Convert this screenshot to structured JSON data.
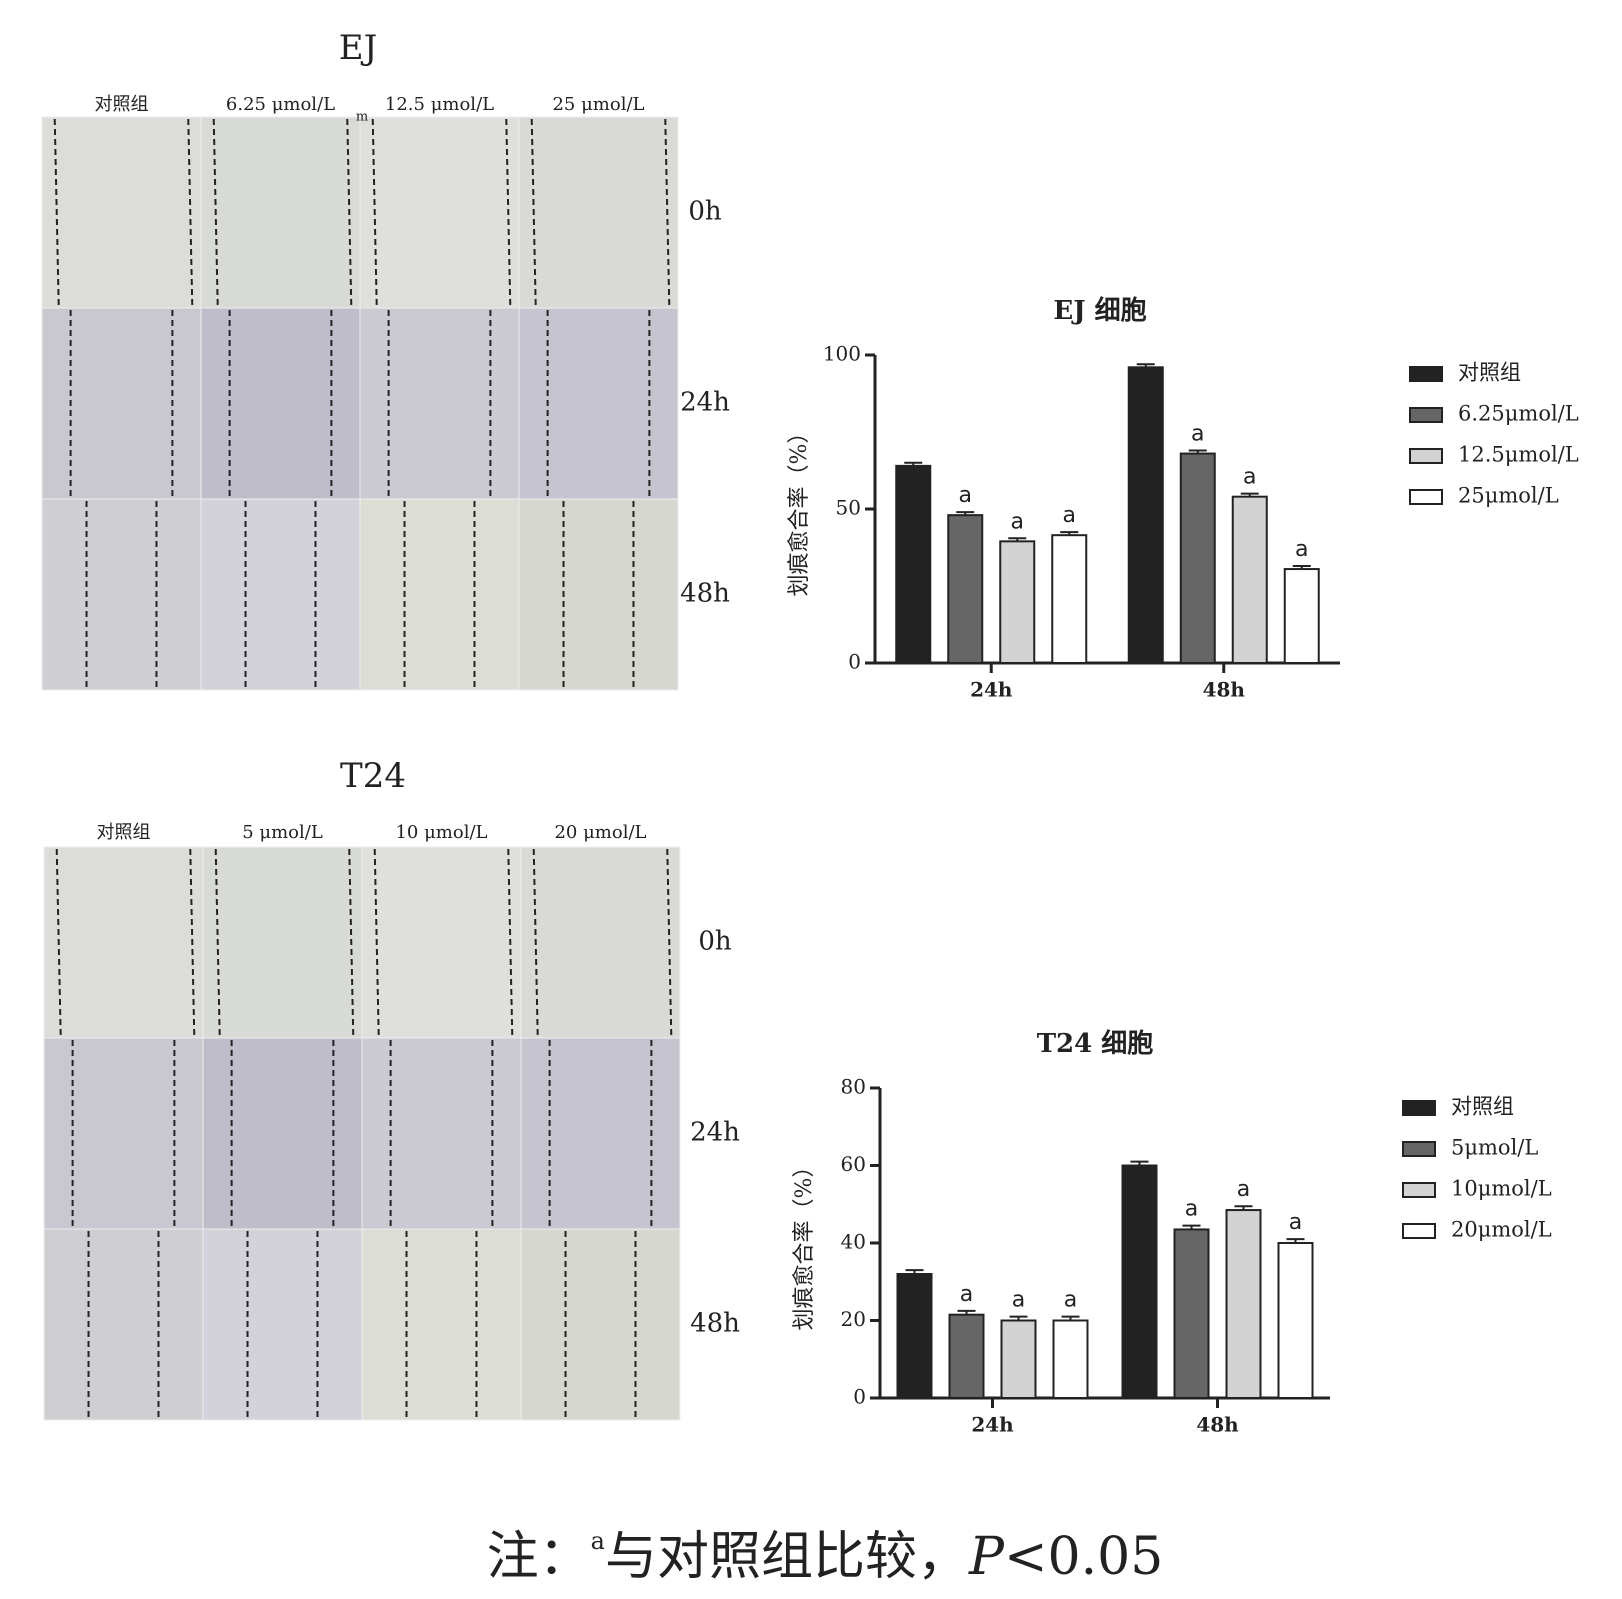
{
  "panels": [
    {
      "title": "EJ",
      "columns": [
        "对照组",
        "6.25 μmol/L",
        "12.5 μmol/L",
        "25 μmol/L"
      ],
      "rows": [
        "0h",
        "24h",
        "48h"
      ],
      "artifact": "m"
    },
    {
      "title": "T24",
      "columns": [
        "对照组",
        "5 μmol/L",
        "10 μmol/L",
        "20 μmol/L"
      ],
      "rows": [
        "0h",
        "24h",
        "48h"
      ]
    }
  ],
  "chart_data": [
    {
      "type": "bar",
      "title": "EJ 细胞",
      "y_label": "划痕愈合率（%）",
      "categories": [
        "24h",
        "48h"
      ],
      "ylim": [
        0,
        100
      ],
      "yticks": [
        0,
        50,
        100
      ],
      "legend": "right",
      "series": [
        {
          "name": "对照组",
          "color": "#222222",
          "values": [
            64,
            96
          ],
          "errors": [
            1,
            1
          ],
          "significance": [
            null,
            null
          ]
        },
        {
          "name": "6.25μmol/L",
          "color": "#666666",
          "values": [
            48,
            68
          ],
          "errors": [
            1,
            1
          ],
          "significance": [
            "a",
            "a"
          ]
        },
        {
          "name": "12.5μmol/L",
          "color": "#d3d3d3",
          "values": [
            39.5,
            54
          ],
          "errors": [
            1,
            1
          ],
          "significance": [
            "a",
            "a"
          ]
        },
        {
          "name": "25μmol/L",
          "color": "#ffffff",
          "values": [
            41.5,
            30.5
          ],
          "errors": [
            1,
            1
          ],
          "significance": [
            "a",
            "a"
          ]
        }
      ]
    },
    {
      "type": "bar",
      "title": "T24 细胞",
      "y_label": "划痕愈合率（%）",
      "categories": [
        "24h",
        "48h"
      ],
      "ylim": [
        0,
        80
      ],
      "yticks": [
        0,
        20,
        40,
        60,
        80
      ],
      "legend": "right",
      "series": [
        {
          "name": "对照组",
          "color": "#222222",
          "values": [
            32,
            60
          ],
          "errors": [
            1,
            1
          ],
          "significance": [
            null,
            null
          ]
        },
        {
          "name": "5μmol/L",
          "color": "#666666",
          "values": [
            21.5,
            43.5
          ],
          "errors": [
            1,
            1
          ],
          "significance": [
            "a",
            "a"
          ]
        },
        {
          "name": "10μmol/L",
          "color": "#d3d3d3",
          "values": [
            20,
            48.5
          ],
          "errors": [
            1,
            1
          ],
          "significance": [
            "a",
            "a"
          ]
        },
        {
          "name": "20μmol/L",
          "color": "#ffffff",
          "values": [
            20,
            40
          ],
          "errors": [
            1,
            1
          ],
          "significance": [
            "a",
            "a"
          ]
        }
      ]
    }
  ],
  "note": {
    "prefix": "注：",
    "superscript": "a",
    "text": "与对照组比较，",
    "p": "P",
    "rest": "<0.05"
  }
}
